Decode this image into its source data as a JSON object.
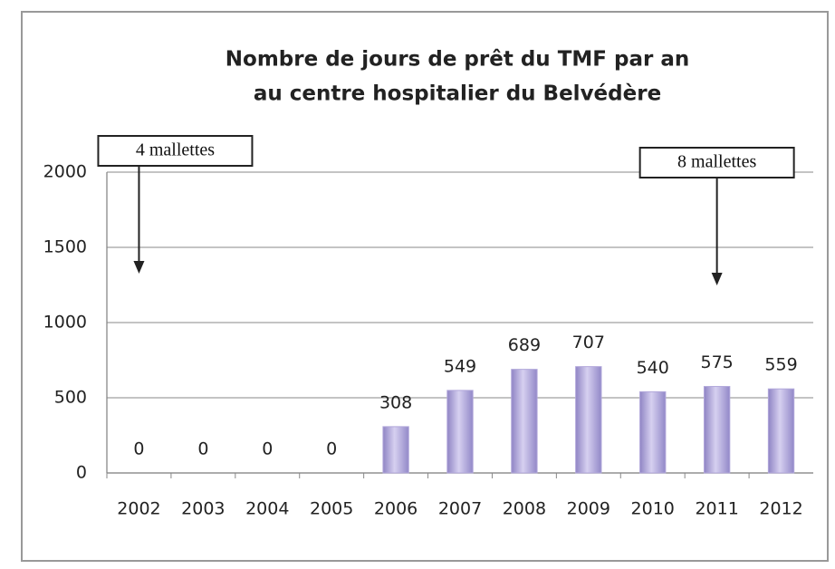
{
  "chart_data": {
    "type": "bar",
    "title": [
      "Nombre de jours de prêt du TMF par an",
      "au centre hospitalier du Belvédère"
    ],
    "categories": [
      "2002",
      "2003",
      "2004",
      "2005",
      "2006",
      "2007",
      "2008",
      "2009",
      "2010",
      "2011",
      "2012"
    ],
    "values": [
      0,
      0,
      0,
      0,
      308,
      549,
      689,
      707,
      540,
      575,
      559
    ],
    "color": "#b1a7da",
    "ylim": [
      0,
      2000
    ],
    "yticks": [
      0,
      500,
      1000,
      1500,
      2000
    ],
    "grid": true,
    "annotations": [
      {
        "text": "4 mallettes",
        "category": "2002"
      },
      {
        "text": "8 mallettes",
        "category": "2011"
      }
    ]
  }
}
